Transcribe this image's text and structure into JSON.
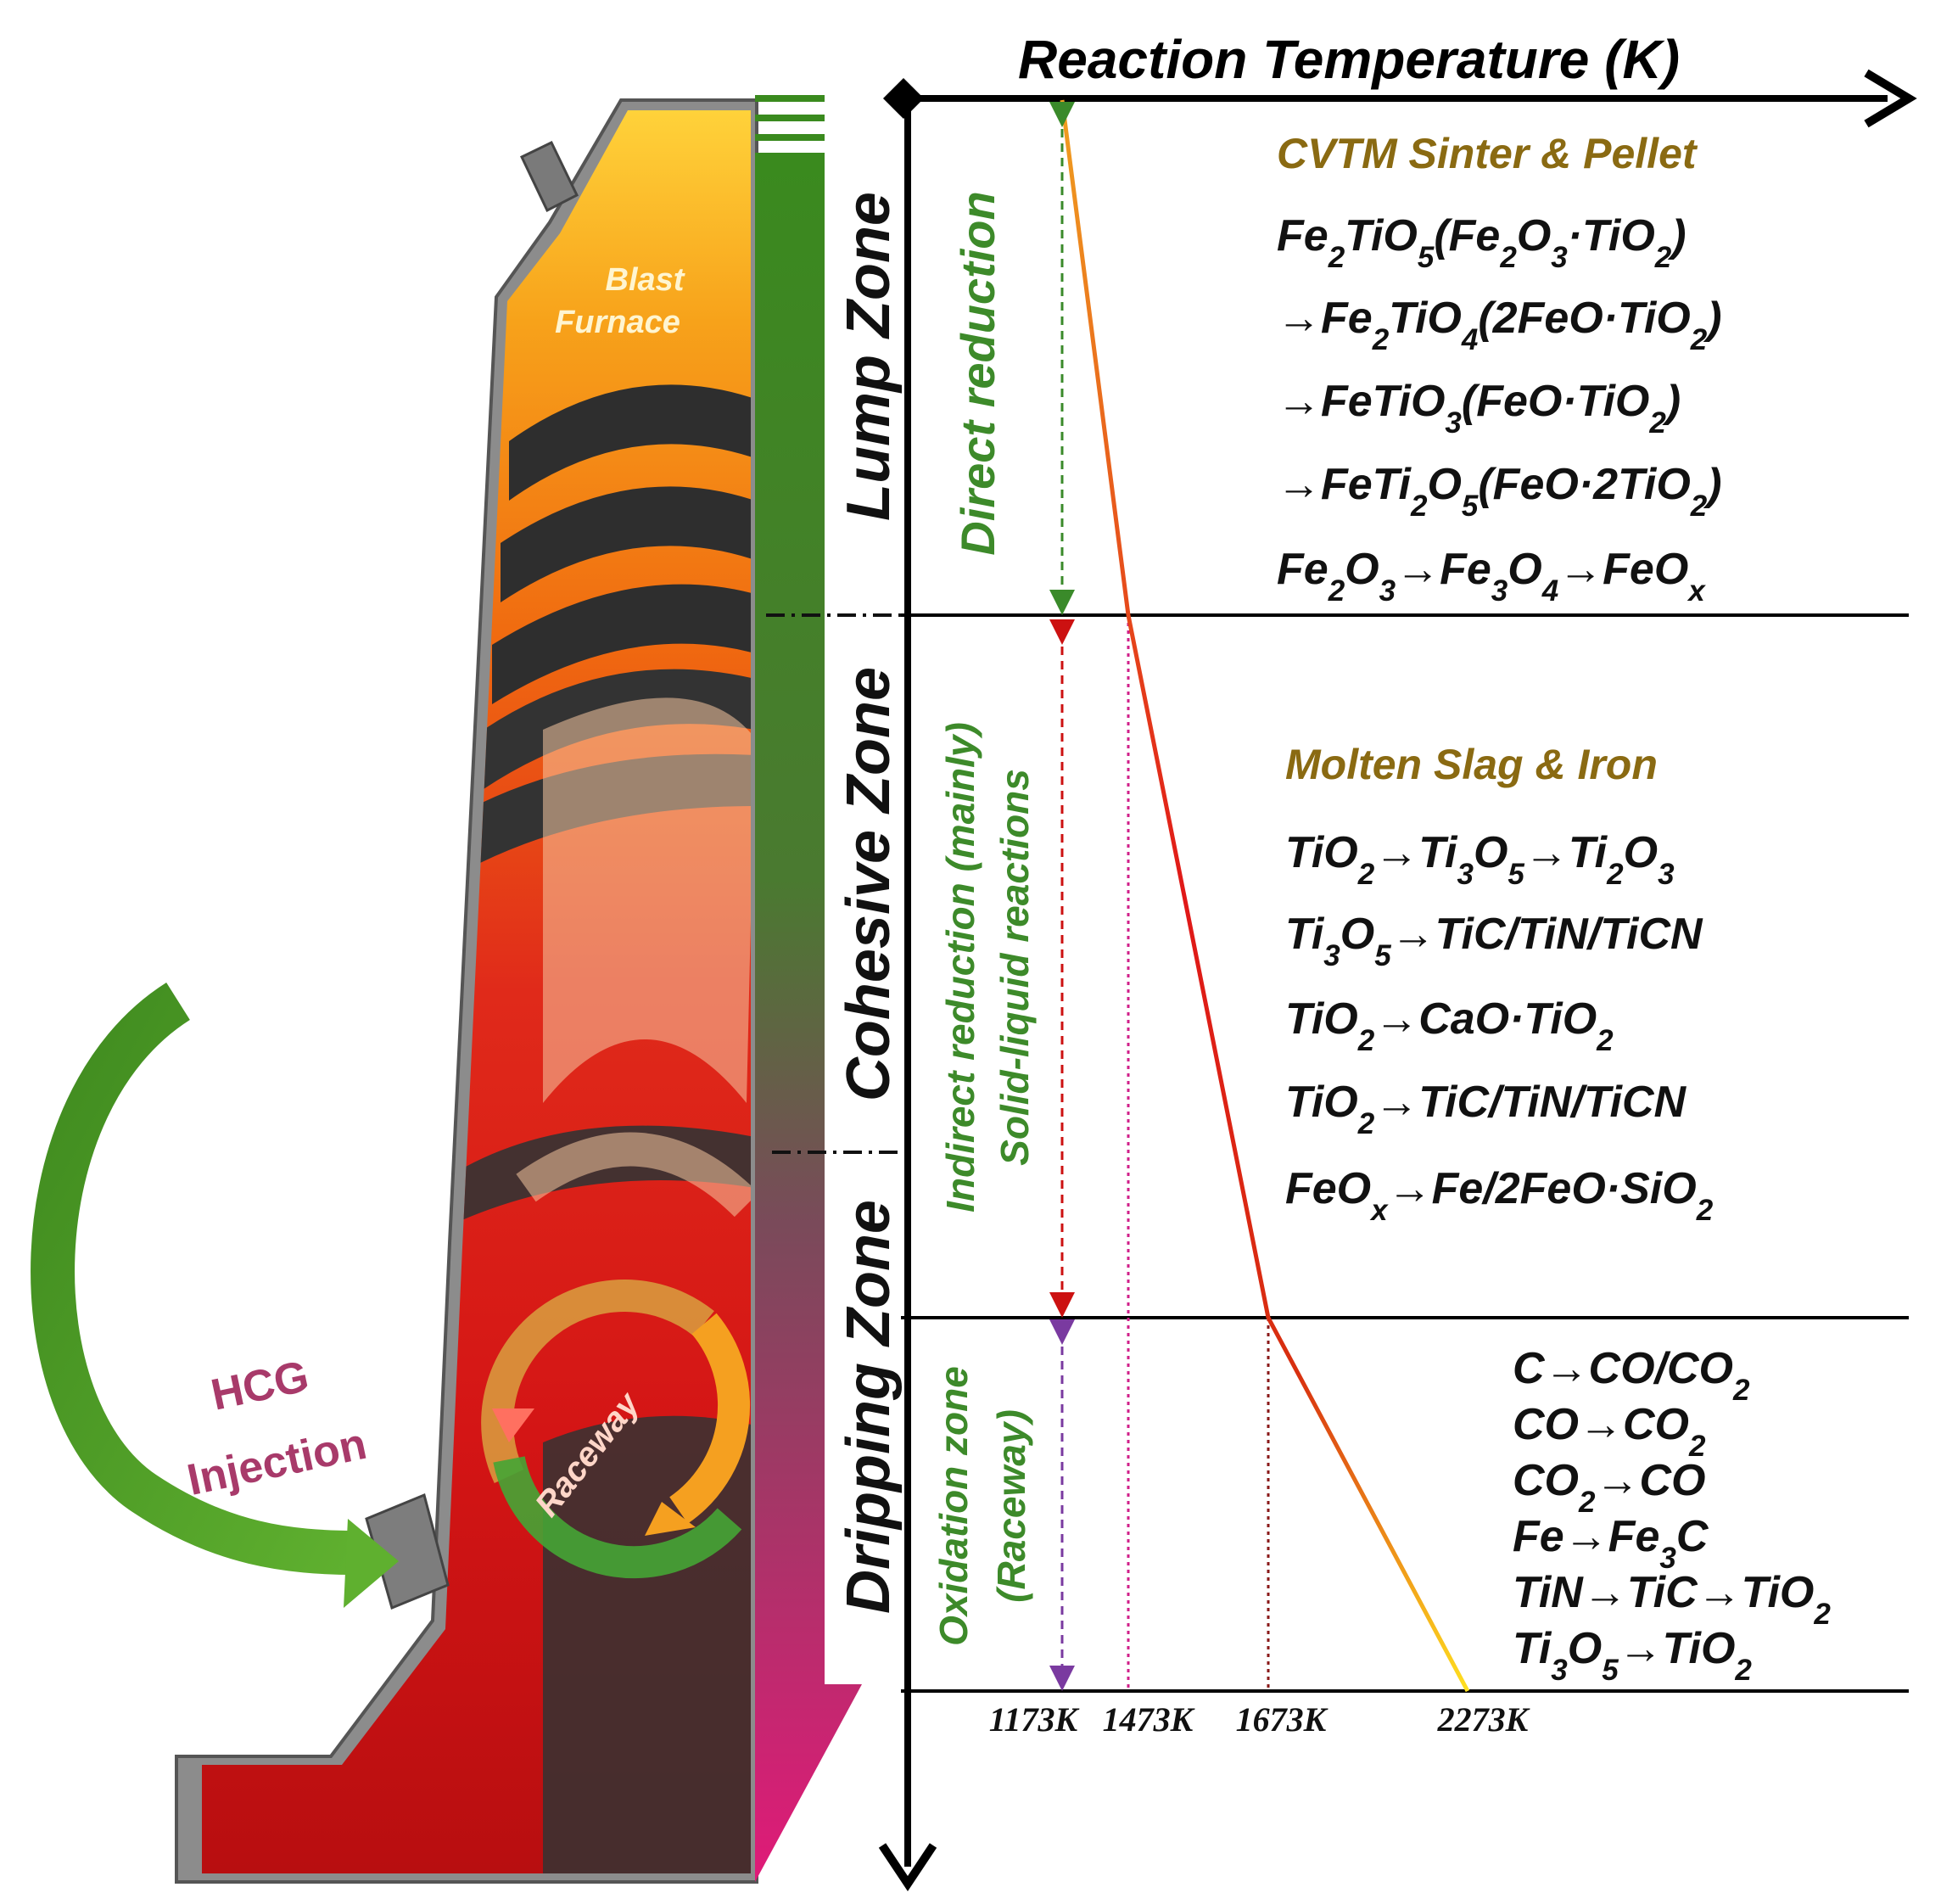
{
  "title": "Reaction Temperature (K)",
  "furnace_label": [
    "Blast",
    "Furnace"
  ],
  "injection_label": [
    "HCG",
    "Injection"
  ],
  "raceway_label": "Raceway",
  "zones": [
    "Lump Zone",
    "Cohesive Zone",
    "Dripping Zone"
  ],
  "processes": {
    "direct": "Direct  reduction",
    "indirect_1": "Indirect reduction (mainly)",
    "indirect_2": "Solid-liquid reactions",
    "oxidation_1": "Oxidation zone",
    "oxidation_2": "(Raceway)"
  },
  "ticks": [
    "1173K",
    "1473K",
    "1673K",
    "2273K"
  ],
  "sections": {
    "sinter": {
      "heading": "CVTM Sinter & Pellet",
      "lines": [
        "Fe2TiO5(Fe2O3·TiO2)",
        "→Fe2TiO4(2FeO·TiO2)",
        "→FeTiO3(FeO·TiO2)",
        "→FeTi2O5(FeO·2TiO2)",
        "Fe2O3→Fe3O4→FeOx"
      ]
    },
    "slag": {
      "heading": "Molten Slag & Iron",
      "lines": [
        "TiO2→Ti3O5→Ti2O3",
        "Ti3O5→TiC/TiN/TiCN",
        "TiO2→CaO·TiO2",
        "TiO2→TiC/TiN/TiCN",
        "FeOx→Fe/2FeO·SiO2"
      ]
    },
    "raceway": {
      "lines": [
        "C→CO/CO2",
        "CO→CO2",
        "CO2→CO",
        "Fe→Fe3C",
        "TiN→TiC→TiO2",
        "Ti3O5→TiO2"
      ]
    }
  },
  "colors": {
    "heading": "#8a6a12",
    "process_green": "#3d8a2a",
    "arrow_green": "#3a8a2a",
    "arrow_red": "#cc1111",
    "arrow_purple": "#7a3aa0",
    "injection_text": "#a83a6a"
  }
}
